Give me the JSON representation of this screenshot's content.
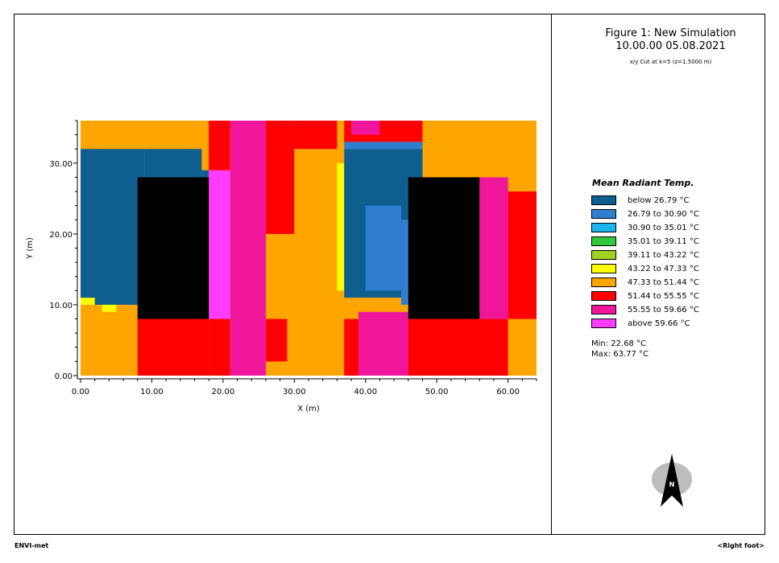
{
  "figure": {
    "title_line1": "Figure 1: New Simulation",
    "title_line2": "10.00.00 05.08.2021",
    "subtitle": "x/y Cut at k=5 (z=1.5000 m)"
  },
  "legend": {
    "title": "Mean Radiant Temp.",
    "items": [
      {
        "label": "below 26.79 °C",
        "color": "#0e5f8f"
      },
      {
        "label": "26.79 to 30.90 °C",
        "color": "#2f7ed0"
      },
      {
        "label": "30.90 to 35.01 °C",
        "color": "#1eb4f0"
      },
      {
        "label": "35.01 to 39.11 °C",
        "color": "#33c83c"
      },
      {
        "label": "39.11 to 43.22 °C",
        "color": "#a0d21e"
      },
      {
        "label": "43.22 to 47.33 °C",
        "color": "#ffff00"
      },
      {
        "label": "47.33 to 51.44 °C",
        "color": "#ffa500"
      },
      {
        "label": "51.44 to 55.55 °C",
        "color": "#ff0000"
      },
      {
        "label": "55.55 to 59.66 °C",
        "color": "#f0169b"
      },
      {
        "label": "above 59.66 °C",
        "color": "#ff3cff"
      }
    ],
    "min_text": "Min: 22.68 °C",
    "max_text": "Max: 63.77 °C"
  },
  "footer": {
    "left": "ENVI-met",
    "right": "<Right foot>"
  },
  "compass_label": "N",
  "chart_data": {
    "type": "heatmap",
    "xlabel": "X (m)",
    "ylabel": "Y (m)",
    "xlim": [
      0,
      64
    ],
    "ylim": [
      0,
      36
    ],
    "x_ticks": [
      "0.00",
      "10.00",
      "20.00",
      "30.00",
      "40.00",
      "50.00",
      "60.00"
    ],
    "y_ticks": [
      "0.00",
      "10.00",
      "20.00",
      "30.00"
    ],
    "building_color": "#000000",
    "cell_size_m": 2,
    "regions": [
      {
        "x": [
          0,
          64
        ],
        "y": [
          0,
          36
        ],
        "band": 6
      },
      {
        "x": [
          0,
          9
        ],
        "y": [
          10,
          32
        ],
        "band": 0
      },
      {
        "x": [
          9,
          17
        ],
        "y": [
          28,
          32
        ],
        "band": 0
      },
      {
        "x": [
          17,
          18
        ],
        "y": [
          28,
          29
        ],
        "band": 0
      },
      {
        "x": [
          0,
          2
        ],
        "y": [
          10,
          11
        ],
        "band": 5
      },
      {
        "x": [
          3,
          5
        ],
        "y": [
          9,
          10
        ],
        "band": 5
      },
      {
        "x": [
          8,
          18
        ],
        "y": [
          0,
          8
        ],
        "band": 7
      },
      {
        "x": [
          18,
          21
        ],
        "y": [
          0,
          8
        ],
        "band": 7
      },
      {
        "x": [
          18,
          21
        ],
        "y": [
          8,
          29
        ],
        "band": 9
      },
      {
        "x": [
          18,
          21
        ],
        "y": [
          29,
          36
        ],
        "band": 7
      },
      {
        "x": [
          21,
          26
        ],
        "y": [
          0,
          36
        ],
        "band": 8
      },
      {
        "x": [
          26,
          30
        ],
        "y": [
          20,
          36
        ],
        "band": 7
      },
      {
        "x": [
          30,
          36
        ],
        "y": [
          32,
          36
        ],
        "band": 7
      },
      {
        "x": [
          26,
          29
        ],
        "y": [
          2,
          8
        ],
        "band": 7
      },
      {
        "x": [
          36,
          37
        ],
        "y": [
          12,
          30
        ],
        "band": 5
      },
      {
        "x": [
          37,
          48
        ],
        "y": [
          11,
          32
        ],
        "band": 0
      },
      {
        "x": [
          40,
          45
        ],
        "y": [
          12,
          24
        ],
        "band": 1
      },
      {
        "x": [
          45,
          47
        ],
        "y": [
          10,
          22
        ],
        "band": 1
      },
      {
        "x": [
          37,
          48
        ],
        "y": [
          32,
          33
        ],
        "band": 1
      },
      {
        "x": [
          37,
          48
        ],
        "y": [
          33,
          36
        ],
        "band": 7
      },
      {
        "x": [
          38,
          42
        ],
        "y": [
          34,
          36
        ],
        "band": 8
      },
      {
        "x": [
          39,
          46
        ],
        "y": [
          0,
          9
        ],
        "band": 8
      },
      {
        "x": [
          37,
          39
        ],
        "y": [
          0,
          8
        ],
        "band": 7
      },
      {
        "x": [
          46,
          60
        ],
        "y": [
          0,
          8
        ],
        "band": 7
      },
      {
        "x": [
          56,
          60
        ],
        "y": [
          8,
          28
        ],
        "band": 8
      },
      {
        "x": [
          60,
          64
        ],
        "y": [
          8,
          26
        ],
        "band": 7
      }
    ],
    "buildings": [
      {
        "x": [
          8,
          18
        ],
        "y": [
          8,
          28
        ]
      },
      {
        "x": [
          46,
          56
        ],
        "y": [
          8,
          28
        ]
      }
    ]
  }
}
